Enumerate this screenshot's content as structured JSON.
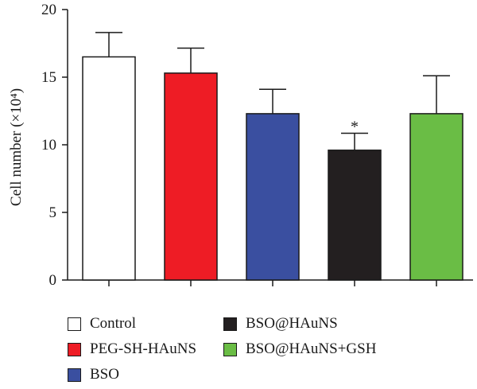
{
  "chart_data": {
    "type": "bar",
    "ylabel": "Cell number (×10⁴)",
    "ylim": [
      0,
      20
    ],
    "yticks": [
      "0",
      "5",
      "10",
      "15",
      "20"
    ],
    "categories": [
      "Control",
      "PEG-SH-HAuNS",
      "BSO",
      "BSO@HAuNS",
      "BSO@HAuNS+GSH"
    ],
    "values": [
      16.5,
      15.3,
      12.3,
      9.6,
      12.3
    ],
    "errors": [
      1.8,
      1.85,
      1.8,
      1.25,
      2.8
    ],
    "colors": [
      "#ffffff",
      "#ee1c25",
      "#3a4fa0",
      "#231f20",
      "#6abd45"
    ],
    "annotations": [
      {
        "category": "BSO@HAuNS",
        "text": "*"
      }
    ]
  },
  "legend": {
    "items": [
      {
        "label": "Control",
        "color": "#ffffff"
      },
      {
        "label": "PEG-SH-HAuNS",
        "color": "#ee1c25"
      },
      {
        "label": "BSO",
        "color": "#3a4fa0"
      },
      {
        "label": "BSO@HAuNS",
        "color": "#231f20"
      },
      {
        "label": "BSO@HAuNS+GSH",
        "color": "#6abd45"
      }
    ]
  }
}
